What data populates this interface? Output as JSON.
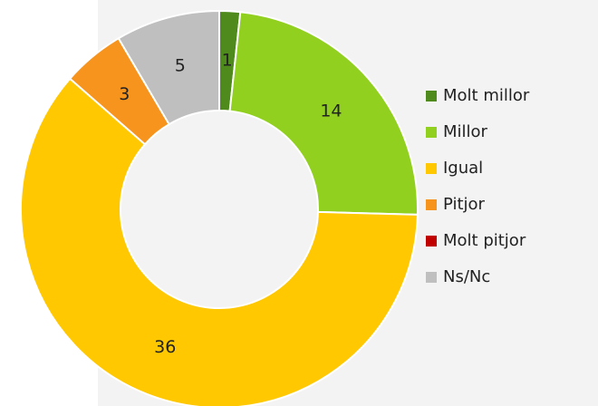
{
  "chart_data": {
    "type": "donut",
    "categories": [
      "Molt millor",
      "Millor",
      "Igual",
      "Pitjor",
      "Molt pitjor",
      "Ns/Nc"
    ],
    "values": [
      1,
      14,
      36,
      3,
      0,
      5
    ],
    "colors": [
      "#4e8a1c",
      "#92d020",
      "#ffc800",
      "#f7941d",
      "#c00000",
      "#bfbfbf"
    ],
    "legend": "right"
  }
}
